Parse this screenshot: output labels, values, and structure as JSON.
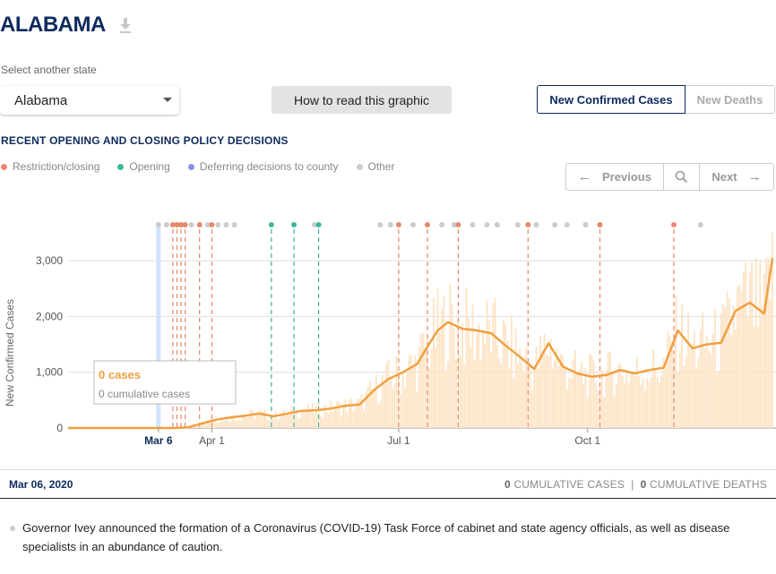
{
  "header": {
    "title": "ALABAMA",
    "download_icon": "download-icon"
  },
  "state_select": {
    "label": "Select another state",
    "value": "Alabama"
  },
  "how_button": "How to read this graphic",
  "metric_toggle": {
    "active": "New Confirmed Cases",
    "inactive": "New Deaths"
  },
  "policy_section": {
    "title": "RECENT OPENING AND CLOSING POLICY DECISIONS",
    "legend": [
      {
        "label": "Restriction/closing",
        "color": "#e8886a"
      },
      {
        "label": "Opening",
        "color": "#3bb89a"
      },
      {
        "label": "Deferring decisions to county",
        "color": "#8a8ff0"
      },
      {
        "label": "Other",
        "color": "#cccccc"
      }
    ]
  },
  "pager": {
    "previous": "Previous",
    "next": "Next"
  },
  "chart_data": {
    "type": "line",
    "ylabel": "New Confirmed Cases",
    "y_ticks": [
      0,
      1000,
      2000,
      3000
    ],
    "y_tick_labels": [
      "0",
      "1,000",
      "2,000",
      "3,000"
    ],
    "ylim": [
      0,
      3500
    ],
    "x_range": [
      "2020-01-22",
      "2020-12-30"
    ],
    "x_ticks": [
      {
        "date": "2020-03-06",
        "label": "Mar 6",
        "selected": true
      },
      {
        "date": "2020-04-01",
        "label": "Apr 1"
      },
      {
        "date": "2020-07-01",
        "label": "Jul 1"
      },
      {
        "date": "2020-10-01",
        "label": "Oct 1"
      }
    ],
    "selected_date": "2020-03-06",
    "series": [
      {
        "style": "7-day average line",
        "color": "#f0a040",
        "x": [
          "2020-01-22",
          "2020-03-06",
          "2020-03-13",
          "2020-03-20",
          "2020-03-27",
          "2020-04-03",
          "2020-04-10",
          "2020-04-17",
          "2020-04-24",
          "2020-05-01",
          "2020-05-08",
          "2020-05-15",
          "2020-05-22",
          "2020-05-29",
          "2020-06-05",
          "2020-06-12",
          "2020-06-19",
          "2020-06-26",
          "2020-07-03",
          "2020-07-10",
          "2020-07-14",
          "2020-07-20",
          "2020-07-25",
          "2020-08-01",
          "2020-08-08",
          "2020-08-15",
          "2020-08-22",
          "2020-08-29",
          "2020-09-05",
          "2020-09-12",
          "2020-09-19",
          "2020-09-26",
          "2020-10-03",
          "2020-10-10",
          "2020-10-17",
          "2020-10-24",
          "2020-10-31",
          "2020-11-07",
          "2020-11-14",
          "2020-11-21",
          "2020-11-28",
          "2020-12-05",
          "2020-12-12",
          "2020-12-19",
          "2020-12-26",
          "2020-12-30"
        ],
        "values": [
          0,
          0,
          0,
          10,
          80,
          150,
          190,
          220,
          260,
          210,
          260,
          310,
          320,
          350,
          400,
          420,
          680,
          880,
          1000,
          1150,
          1400,
          1750,
          1900,
          1780,
          1750,
          1700,
          1480,
          1280,
          1060,
          1520,
          1100,
          980,
          920,
          950,
          1040,
          980,
          1040,
          1080,
          1750,
          1430,
          1500,
          1530,
          2100,
          2250,
          2050,
          3050
        ]
      }
    ],
    "daily_bars": {
      "color": "#fde3c4",
      "note": "daily new cases, light bars"
    },
    "tooltip": {
      "cases": "0 cases",
      "cumulative": "0 cumulative cases"
    },
    "policy_events": [
      {
        "date": "2020-03-06",
        "type": "other"
      },
      {
        "date": "2020-03-10",
        "type": "other"
      },
      {
        "date": "2020-03-13",
        "type": "restriction"
      },
      {
        "date": "2020-03-15",
        "type": "restriction"
      },
      {
        "date": "2020-03-17",
        "type": "restriction"
      },
      {
        "date": "2020-03-19",
        "type": "restriction"
      },
      {
        "date": "2020-03-22",
        "type": "other"
      },
      {
        "date": "2020-03-26",
        "type": "restriction"
      },
      {
        "date": "2020-03-30",
        "type": "other"
      },
      {
        "date": "2020-04-01",
        "type": "restriction"
      },
      {
        "date": "2020-04-04",
        "type": "other"
      },
      {
        "date": "2020-04-08",
        "type": "other"
      },
      {
        "date": "2020-04-12",
        "type": "other"
      },
      {
        "date": "2020-04-30",
        "type": "opening"
      },
      {
        "date": "2020-05-11",
        "type": "opening"
      },
      {
        "date": "2020-05-21",
        "type": "other"
      },
      {
        "date": "2020-05-23",
        "type": "opening"
      },
      {
        "date": "2020-06-22",
        "type": "other"
      },
      {
        "date": "2020-06-27",
        "type": "other"
      },
      {
        "date": "2020-07-01",
        "type": "restriction"
      },
      {
        "date": "2020-07-08",
        "type": "other"
      },
      {
        "date": "2020-07-15",
        "type": "restriction"
      },
      {
        "date": "2020-07-22",
        "type": "other"
      },
      {
        "date": "2020-07-28",
        "type": "other"
      },
      {
        "date": "2020-07-30",
        "type": "restriction"
      },
      {
        "date": "2020-08-06",
        "type": "other"
      },
      {
        "date": "2020-08-13",
        "type": "other"
      },
      {
        "date": "2020-08-18",
        "type": "other"
      },
      {
        "date": "2020-08-28",
        "type": "other"
      },
      {
        "date": "2020-09-02",
        "type": "restriction"
      },
      {
        "date": "2020-09-06",
        "type": "other"
      },
      {
        "date": "2020-09-15",
        "type": "other"
      },
      {
        "date": "2020-09-21",
        "type": "other"
      },
      {
        "date": "2020-09-30",
        "type": "other"
      },
      {
        "date": "2020-10-07",
        "type": "restriction"
      },
      {
        "date": "2020-11-12",
        "type": "restriction"
      },
      {
        "date": "2020-11-25",
        "type": "other"
      }
    ]
  },
  "selected_day": {
    "date": "Mar 06, 2020",
    "cumulative_cases_value": "0",
    "cumulative_cases_label": "CUMULATIVE CASES",
    "separator": "|",
    "cumulative_deaths_value": "0",
    "cumulative_deaths_label": "CUMULATIVE DEATHS"
  },
  "policy_description": "Governor Ivey announced the formation of a Coronavirus (COVID-19) Task Force of cabinet and state agency officials, as well as disease specialists in an abundance of caution."
}
